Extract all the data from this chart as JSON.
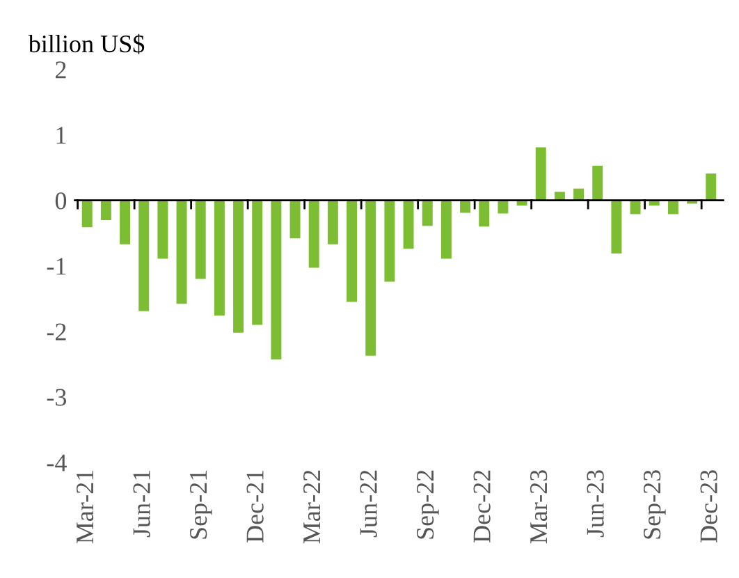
{
  "chart_data": {
    "type": "bar",
    "ylabel": "billion US$",
    "categories": [
      "Mar-21",
      null,
      null,
      "Jun-21",
      null,
      null,
      "Sep-21",
      null,
      null,
      "Dec-21",
      null,
      null,
      "Mar-22",
      null,
      null,
      "Jun-22",
      null,
      null,
      "Sep-22",
      null,
      null,
      "Dec-22",
      null,
      null,
      "Mar-23",
      null,
      null,
      "Jun-23",
      null,
      null,
      "Sep-23",
      null,
      null,
      "Dec-23"
    ],
    "series": [
      {
        "color": "#7cbd33",
        "values": [
          -0.41,
          -0.3,
          -0.67,
          -1.69,
          -0.89,
          -1.58,
          -1.2,
          -1.76,
          -2.02,
          -1.9,
          -2.43,
          -0.58,
          -1.03,
          -0.67,
          -1.55,
          -2.37,
          -1.24,
          -0.74,
          -0.39,
          -0.89,
          -0.19,
          -0.4,
          -0.2,
          -0.08,
          0.81,
          0.13,
          0.18,
          0.53,
          -0.81,
          -0.21,
          -0.08,
          -0.21,
          -0.05,
          0.41
        ]
      }
    ],
    "ylim": [
      -4,
      2
    ],
    "yticks": [
      -4,
      -3,
      -2,
      -1,
      0,
      1,
      2
    ]
  }
}
